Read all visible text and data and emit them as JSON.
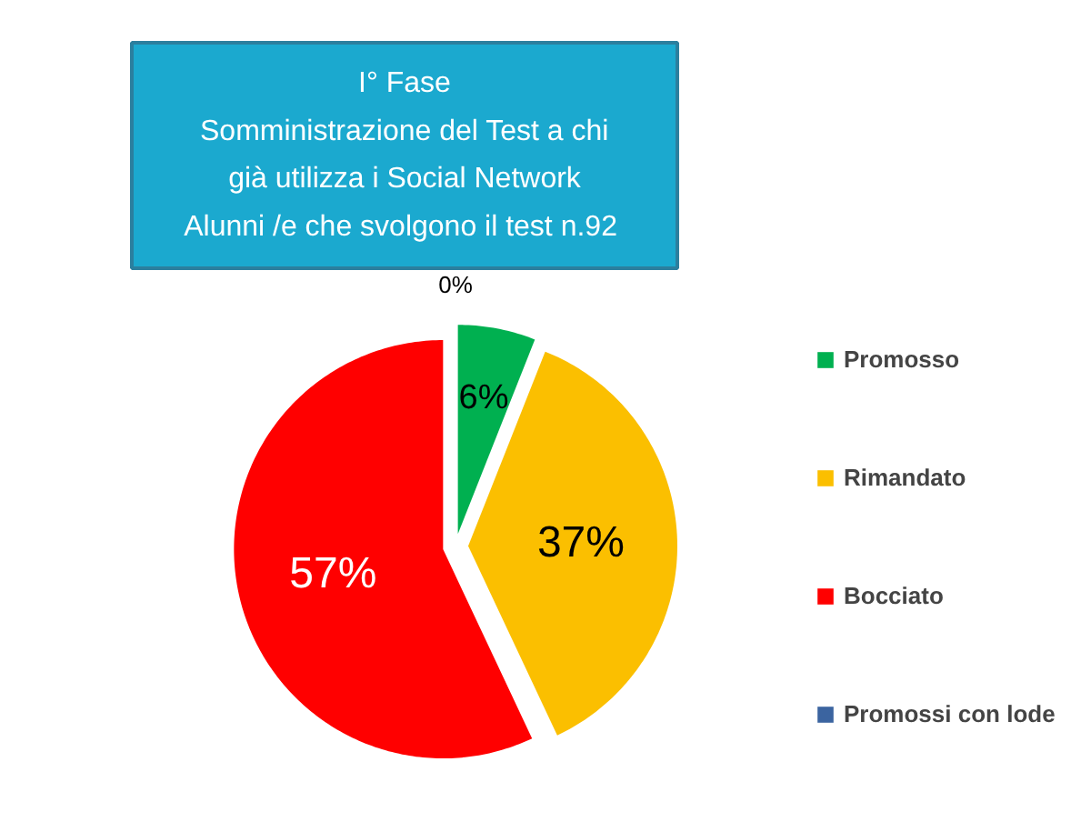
{
  "chart_data": {
    "type": "pie",
    "title": "I° Fase\nSomministrazione del Test a chi\ngià utilizza i Social Network\nAlunni /e  che svolgono il test n.92",
    "categories": [
      "Promosso",
      "Rimandato",
      "Bocciato",
      "Promossi con lode"
    ],
    "values": [
      6,
      37,
      57,
      0
    ],
    "value_labels": [
      "6%",
      "37%",
      "57%",
      "0%"
    ],
    "colors": [
      "#00b050",
      "#fbbf00",
      "#ff0000",
      "#3b64a0"
    ],
    "legend": "right"
  }
}
